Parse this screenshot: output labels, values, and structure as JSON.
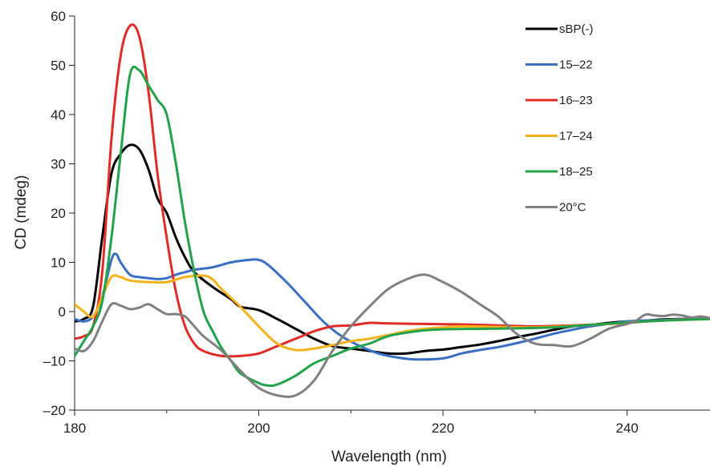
{
  "chart_data": {
    "type": "line",
    "title": "",
    "xlabel": "Wavelength (nm)",
    "ylabel": "CD (mdeg)",
    "xlim": [
      180,
      249
    ],
    "ylim": [
      -20,
      60
    ],
    "x_ticks": [
      180,
      200,
      220,
      240
    ],
    "x_tick_labels": [
      "180",
      "200",
      "220",
      "240"
    ],
    "y_ticks": [
      -20,
      -10,
      0,
      10,
      20,
      30,
      40,
      50,
      60
    ],
    "y_tick_labels": [
      "–20",
      "–10",
      "0",
      "10",
      "20",
      "30",
      "40",
      "50",
      "60"
    ],
    "grid": false,
    "legend_position": "top-right",
    "series": [
      {
        "name": "sBP(-)",
        "color": "#000000",
        "points": [
          [
            180,
            -2
          ],
          [
            181,
            -1.5
          ],
          [
            182,
            1
          ],
          [
            183,
            15
          ],
          [
            184,
            28
          ],
          [
            185,
            32
          ],
          [
            186,
            33.8
          ],
          [
            187,
            33
          ],
          [
            188,
            29
          ],
          [
            189,
            23
          ],
          [
            190,
            20
          ],
          [
            191,
            15
          ],
          [
            192,
            11
          ],
          [
            193,
            8
          ],
          [
            195,
            5
          ],
          [
            197,
            2.5
          ],
          [
            198,
            1
          ],
          [
            200,
            0.3
          ],
          [
            202,
            -1.5
          ],
          [
            204,
            -3.5
          ],
          [
            206,
            -5.5
          ],
          [
            208,
            -7
          ],
          [
            210,
            -7.5
          ],
          [
            212,
            -8
          ],
          [
            214,
            -8.5
          ],
          [
            216,
            -8.5
          ],
          [
            218,
            -8
          ],
          [
            220,
            -7.7
          ],
          [
            222,
            -7.2
          ],
          [
            224,
            -6.7
          ],
          [
            226,
            -6
          ],
          [
            228,
            -5.2
          ],
          [
            230,
            -4.5
          ],
          [
            232,
            -3.7
          ],
          [
            234,
            -3
          ],
          [
            236,
            -2.7
          ],
          [
            238,
            -2.3
          ],
          [
            240,
            -2
          ],
          [
            242,
            -1.8
          ],
          [
            244,
            -1.6
          ],
          [
            246,
            -1.5
          ],
          [
            249,
            -1.4
          ]
        ]
      },
      {
        "name": "15–22",
        "color": "#3a6fc4",
        "points": [
          [
            180,
            -1.5
          ],
          [
            181,
            -2
          ],
          [
            182,
            -1
          ],
          [
            183,
            3
          ],
          [
            184,
            10.5
          ],
          [
            184.5,
            11.7
          ],
          [
            185,
            10
          ],
          [
            186,
            7.5
          ],
          [
            187,
            7
          ],
          [
            188,
            6.8
          ],
          [
            189,
            6.6
          ],
          [
            190,
            6.8
          ],
          [
            191,
            7.5
          ],
          [
            192,
            8
          ],
          [
            193,
            8.5
          ],
          [
            195,
            9
          ],
          [
            197,
            10
          ],
          [
            199,
            10.5
          ],
          [
            200,
            10.5
          ],
          [
            201,
            9.5
          ],
          [
            203,
            6
          ],
          [
            205,
            2
          ],
          [
            207,
            -2
          ],
          [
            209,
            -5
          ],
          [
            211,
            -7
          ],
          [
            213,
            -8.5
          ],
          [
            215,
            -9.3
          ],
          [
            217,
            -9.7
          ],
          [
            220,
            -9.5
          ],
          [
            222,
            -8.5
          ],
          [
            224,
            -7.8
          ],
          [
            226,
            -7.2
          ],
          [
            228,
            -6.4
          ],
          [
            230,
            -5.5
          ],
          [
            232,
            -4.5
          ],
          [
            234,
            -3.7
          ],
          [
            236,
            -3
          ],
          [
            238,
            -2.5
          ],
          [
            240,
            -2
          ],
          [
            242,
            -1.8
          ],
          [
            244,
            -1.7
          ],
          [
            246,
            -1.5
          ],
          [
            249,
            -1.3
          ]
        ]
      },
      {
        "name": "16–23",
        "color": "#e12b26",
        "points": [
          [
            180,
            -5.5
          ],
          [
            181,
            -5
          ],
          [
            182,
            -3
          ],
          [
            183,
            8
          ],
          [
            184,
            35
          ],
          [
            185,
            52
          ],
          [
            186,
            58
          ],
          [
            187,
            56
          ],
          [
            188,
            45
          ],
          [
            189,
            28
          ],
          [
            190,
            15
          ],
          [
            191,
            4
          ],
          [
            192,
            -3
          ],
          [
            193,
            -6.5
          ],
          [
            194,
            -8
          ],
          [
            196,
            -9
          ],
          [
            198,
            -9
          ],
          [
            200,
            -8.5
          ],
          [
            202,
            -7
          ],
          [
            204,
            -5.5
          ],
          [
            206,
            -4
          ],
          [
            208,
            -3
          ],
          [
            210,
            -2.8
          ],
          [
            212,
            -2.3
          ],
          [
            214,
            -2.4
          ],
          [
            218,
            -2.5
          ],
          [
            222,
            -2.6
          ],
          [
            226,
            -2.8
          ],
          [
            230,
            -3
          ],
          [
            234,
            -2.8
          ],
          [
            238,
            -2.5
          ],
          [
            240,
            -2.3
          ],
          [
            242,
            -2
          ],
          [
            244,
            -1.8
          ],
          [
            246,
            -1.6
          ],
          [
            249,
            -1.5
          ]
        ]
      },
      {
        "name": "17–24",
        "color": "#f5b21b",
        "points": [
          [
            180,
            1.5
          ],
          [
            181,
            0
          ],
          [
            182,
            -1
          ],
          [
            183,
            3
          ],
          [
            184,
            7
          ],
          [
            185,
            7
          ],
          [
            186,
            6.3
          ],
          [
            188,
            6
          ],
          [
            190,
            6
          ],
          [
            192,
            7
          ],
          [
            194,
            7.3
          ],
          [
            195,
            6.5
          ],
          [
            196,
            4.5
          ],
          [
            198,
            1
          ],
          [
            200,
            -3
          ],
          [
            202,
            -6.5
          ],
          [
            204,
            -7.8
          ],
          [
            206,
            -7.5
          ],
          [
            208,
            -6.8
          ],
          [
            210,
            -6
          ],
          [
            212,
            -5.5
          ],
          [
            214,
            -4.8
          ],
          [
            216,
            -4
          ],
          [
            218,
            -3.5
          ],
          [
            220,
            -3.2
          ],
          [
            222,
            -3
          ],
          [
            226,
            -3.1
          ],
          [
            230,
            -3.2
          ],
          [
            234,
            -2.9
          ],
          [
            238,
            -2.5
          ],
          [
            240,
            -2.2
          ],
          [
            242,
            -2
          ],
          [
            244,
            -1.8
          ],
          [
            249,
            -1.5
          ]
        ]
      },
      {
        "name": "18–25",
        "color": "#22a34a",
        "points": [
          [
            180,
            -9
          ],
          [
            181,
            -6
          ],
          [
            182,
            -3
          ],
          [
            183,
            2
          ],
          [
            184,
            15
          ],
          [
            185,
            32
          ],
          [
            186,
            48
          ],
          [
            187,
            49
          ],
          [
            188,
            46
          ],
          [
            189,
            43
          ],
          [
            190,
            40
          ],
          [
            191,
            30
          ],
          [
            192,
            18
          ],
          [
            193,
            8
          ],
          [
            194,
            0
          ],
          [
            195,
            -4
          ],
          [
            196,
            -7.5
          ],
          [
            197,
            -10
          ],
          [
            198,
            -12.5
          ],
          [
            200,
            -14.5
          ],
          [
            201,
            -15
          ],
          [
            202,
            -14.8
          ],
          [
            204,
            -13
          ],
          [
            206,
            -10.5
          ],
          [
            208,
            -9
          ],
          [
            210,
            -7.5
          ],
          [
            212,
            -6.5
          ],
          [
            214,
            -5
          ],
          [
            216,
            -4.3
          ],
          [
            218,
            -3.8
          ],
          [
            220,
            -3.6
          ],
          [
            224,
            -3.5
          ],
          [
            228,
            -3.4
          ],
          [
            232,
            -3.2
          ],
          [
            236,
            -2.7
          ],
          [
            240,
            -2.2
          ],
          [
            244,
            -1.8
          ],
          [
            249,
            -1.5
          ]
        ]
      },
      {
        "name": "20°C",
        "color": "#808080",
        "points": [
          [
            180,
            -7.5
          ],
          [
            181,
            -8
          ],
          [
            182,
            -6
          ],
          [
            183,
            -2
          ],
          [
            184,
            1.5
          ],
          [
            185,
            1.2
          ],
          [
            186,
            0.5
          ],
          [
            187,
            0.8
          ],
          [
            188,
            1.5
          ],
          [
            189,
            0.5
          ],
          [
            190,
            -0.5
          ],
          [
            191,
            -0.5
          ],
          [
            192,
            -1
          ],
          [
            193,
            -3
          ],
          [
            194,
            -5
          ],
          [
            196,
            -8
          ],
          [
            198,
            -12
          ],
          [
            200,
            -15.5
          ],
          [
            202,
            -17
          ],
          [
            204,
            -17
          ],
          [
            206,
            -14
          ],
          [
            208,
            -8
          ],
          [
            210,
            -3
          ],
          [
            212,
            1
          ],
          [
            214,
            4.5
          ],
          [
            216,
            6.5
          ],
          [
            218,
            7.5
          ],
          [
            220,
            6
          ],
          [
            222,
            4
          ],
          [
            224,
            1.5
          ],
          [
            226,
            -1
          ],
          [
            228,
            -4.5
          ],
          [
            230,
            -6.5
          ],
          [
            232,
            -6.8
          ],
          [
            234,
            -7
          ],
          [
            236,
            -5.5
          ],
          [
            238,
            -3.5
          ],
          [
            240,
            -2.5
          ],
          [
            241,
            -1.8
          ],
          [
            242,
            -0.6
          ],
          [
            243,
            -0.8
          ],
          [
            244,
            -0.9
          ],
          [
            245,
            -0.6
          ],
          [
            246,
            -0.8
          ],
          [
            247,
            -1.2
          ],
          [
            248,
            -1
          ],
          [
            249,
            -1.3
          ]
        ]
      }
    ]
  }
}
